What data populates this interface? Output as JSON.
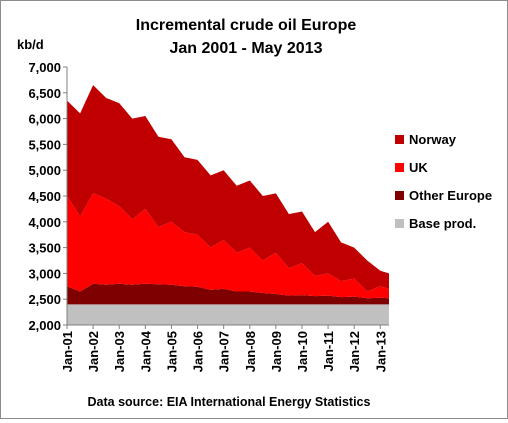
{
  "chart_data": {
    "type": "area",
    "stacked": true,
    "title": [
      "Incremental crude oil Europe",
      "Jan 2001 - May 2013"
    ],
    "ylabel": "kb/d",
    "xlabel": "",
    "ylim": [
      2000,
      7000
    ],
    "yticks": [
      2000,
      2500,
      3000,
      3500,
      4000,
      4500,
      5000,
      5500,
      6000,
      6500,
      7000
    ],
    "ytick_labels": [
      "2,000",
      "2,500",
      "3,000",
      "3,500",
      "4,000",
      "4,500",
      "5,000",
      "5,500",
      "6,000",
      "6,500",
      "7,000"
    ],
    "xlim": [
      "2001-01",
      "2013-05"
    ],
    "xtick_labels": [
      "Jan-01",
      "Jan-02",
      "Jan-03",
      "Jan-04",
      "Jan-05",
      "Jan-06",
      "Jan-07",
      "Jan-08",
      "Jan-09",
      "Jan-10",
      "Jan-11",
      "Jan-12",
      "Jan-13"
    ],
    "grid": false,
    "legend_position": "right",
    "source": "Data source: EIA International Energy Statistics",
    "x": [
      "2001-01",
      "2001-07",
      "2002-01",
      "2002-07",
      "2003-01",
      "2003-07",
      "2004-01",
      "2004-07",
      "2005-01",
      "2005-07",
      "2006-01",
      "2006-07",
      "2007-01",
      "2007-07",
      "2008-01",
      "2008-07",
      "2009-01",
      "2009-07",
      "2010-01",
      "2010-07",
      "2011-01",
      "2011-07",
      "2012-01",
      "2012-07",
      "2013-01",
      "2013-05"
    ],
    "series": [
      {
        "name": "Base prod.",
        "color": "#c0c0c0",
        "values": [
          2400,
          2400,
          2400,
          2400,
          2400,
          2400,
          2400,
          2400,
          2400,
          2400,
          2400,
          2400,
          2400,
          2400,
          2400,
          2400,
          2400,
          2400,
          2400,
          2400,
          2400,
          2400,
          2400,
          2400,
          2400,
          2400
        ]
      },
      {
        "name": "Other Europe",
        "color": "#7f0000",
        "values": [
          2750,
          2650,
          2800,
          2780,
          2800,
          2780,
          2800,
          2790,
          2780,
          2750,
          2740,
          2680,
          2700,
          2650,
          2650,
          2620,
          2600,
          2570,
          2580,
          2560,
          2570,
          2540,
          2550,
          2520,
          2530,
          2520
        ]
      },
      {
        "name": "UK",
        "color": "#ff0000",
        "values": [
          4500,
          4100,
          4550,
          4450,
          4300,
          4050,
          4250,
          3900,
          4000,
          3800,
          3750,
          3500,
          3650,
          3400,
          3500,
          3250,
          3400,
          3100,
          3200,
          2950,
          3000,
          2850,
          2900,
          2650,
          2750,
          2700
        ]
      },
      {
        "name": "Norway",
        "color": "#c00000",
        "values": [
          6350,
          6100,
          6650,
          6400,
          6300,
          6000,
          6050,
          5650,
          5600,
          5250,
          5200,
          4900,
          5000,
          4700,
          4800,
          4500,
          4550,
          4150,
          4200,
          3800,
          4000,
          3600,
          3500,
          3250,
          3050,
          3000
        ]
      }
    ],
    "legend": [
      "Norway",
      "UK",
      "Other Europe",
      "Base prod."
    ]
  }
}
